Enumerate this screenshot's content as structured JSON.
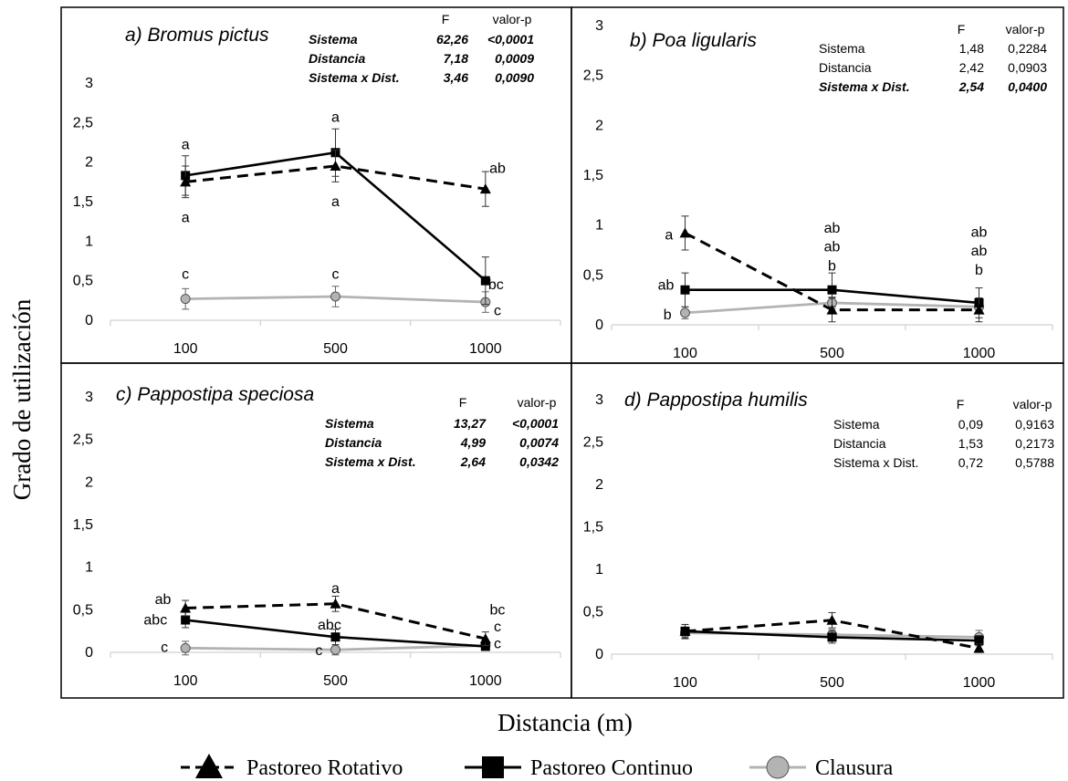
{
  "figure": {
    "ylabel": "Grado de utilización",
    "xlabel": "Distancia (m)",
    "legend": [
      {
        "name": "Pastoreo Rotativo",
        "style": "dashed",
        "marker": "triangle",
        "color": "#000000"
      },
      {
        "name": "Pastoreo Continuo",
        "style": "solid",
        "marker": "square",
        "color": "#000000"
      },
      {
        "name": "Clausura",
        "style": "solid",
        "marker": "circle",
        "color": "#b3b3b3"
      }
    ]
  },
  "chart_data": [
    {
      "type": "line",
      "title": "a) Bromus pictus",
      "categories": [
        "100",
        "500",
        "1000"
      ],
      "ylim": [
        0,
        3
      ],
      "yticks": [
        "0",
        "0,5",
        "1",
        "1,5",
        "2",
        "2,5",
        "3"
      ],
      "series": [
        {
          "name": "Pastoreo Rotativo",
          "values": [
            1.75,
            1.95,
            1.66
          ],
          "errors": [
            0.2,
            0.2,
            0.22
          ]
        },
        {
          "name": "Pastoreo Continuo",
          "values": [
            1.83,
            2.12,
            0.5
          ],
          "errors": [
            0.25,
            0.3,
            0.3
          ]
        },
        {
          "name": "Clausura",
          "values": [
            0.27,
            0.3,
            0.23
          ],
          "errors": [
            0.13,
            0.13,
            0.13
          ]
        }
      ],
      "stats": {
        "header": [
          "F",
          "valor-p"
        ],
        "bold": true,
        "rows": [
          {
            "label": "Sistema",
            "F": "62,26",
            "p": "<0,0001"
          },
          {
            "label": "Distancia",
            "F": "7,18",
            "p": "0,0009"
          },
          {
            "label": "Sistema x Dist.",
            "F": "3,46",
            "p": "0,0090"
          }
        ]
      },
      "annotations": [
        {
          "text": "a",
          "x": 0,
          "y": 2.22
        },
        {
          "text": "a",
          "x": 0,
          "y": 1.3
        },
        {
          "text": "a",
          "x": 1,
          "y": 2.57
        },
        {
          "text": "a",
          "x": 1,
          "y": 1.5
        },
        {
          "text": "ab",
          "x": 2.08,
          "y": 1.92
        },
        {
          "text": "bc",
          "x": 2.07,
          "y": 0.45
        },
        {
          "text": "c",
          "x": 2.08,
          "y": 0.12
        },
        {
          "text": "c",
          "x": 0,
          "y": 0.58
        },
        {
          "text": "c",
          "x": 1,
          "y": 0.58
        }
      ]
    },
    {
      "type": "line",
      "title": "b) Poa ligularis",
      "categories": [
        "100",
        "500",
        "1000"
      ],
      "ylim": [
        0,
        3
      ],
      "yticks": [
        "0",
        "0,5",
        "1",
        "1,5",
        "2",
        "2,5",
        "3"
      ],
      "series": [
        {
          "name": "Pastoreo Rotativo",
          "values": [
            0.92,
            0.15,
            0.15
          ],
          "errors": [
            0.17,
            0.12,
            0.12
          ]
        },
        {
          "name": "Pastoreo Continuo",
          "values": [
            0.35,
            0.35,
            0.22
          ],
          "errors": [
            0.17,
            0.17,
            0.15
          ]
        },
        {
          "name": "Clausura",
          "values": [
            0.12,
            0.22,
            0.18
          ],
          "errors": [
            0.06,
            0.06,
            0.06
          ]
        }
      ],
      "stats": {
        "header": [
          "F",
          "valor-p"
        ],
        "bold": false,
        "rows": [
          {
            "label": "Sistema",
            "F": "1,48",
            "p": "0,2284",
            "bold": false
          },
          {
            "label": "Distancia",
            "F": "2,42",
            "p": "0,0903",
            "bold": false
          },
          {
            "label": "Sistema x Dist.",
            "F": "2,54",
            "p": "0,0400",
            "bold": true
          }
        ]
      },
      "annotations": [
        {
          "text": "a",
          "x": -0.11,
          "y": 0.9
        },
        {
          "text": "ab",
          "x": -0.13,
          "y": 0.4
        },
        {
          "text": "b",
          "x": -0.12,
          "y": 0.1
        },
        {
          "text": "ab",
          "x": 1,
          "y": 0.97
        },
        {
          "text": "ab",
          "x": 1,
          "y": 0.78
        },
        {
          "text": "b",
          "x": 1,
          "y": 0.59
        },
        {
          "text": "ab",
          "x": 2,
          "y": 0.93
        },
        {
          "text": "ab",
          "x": 2,
          "y": 0.74
        },
        {
          "text": "b",
          "x": 2,
          "y": 0.55
        }
      ]
    },
    {
      "type": "line",
      "title": "c) Pappostipa speciosa",
      "categories": [
        "100",
        "500",
        "1000"
      ],
      "ylim": [
        0,
        3
      ],
      "yticks": [
        "0",
        "0,5",
        "1",
        "1,5",
        "2",
        "2,5",
        "3"
      ],
      "series": [
        {
          "name": "Pastoreo Rotativo",
          "values": [
            0.52,
            0.57,
            0.16
          ],
          "errors": [
            0.09,
            0.09,
            0.08
          ]
        },
        {
          "name": "Pastoreo Continuo",
          "values": [
            0.38,
            0.18,
            0.07
          ],
          "errors": [
            0.09,
            0.09,
            0.04
          ]
        },
        {
          "name": "Clausura",
          "values": [
            0.05,
            0.03,
            0.08
          ],
          "errors": [
            0.08,
            0.06,
            0.04
          ]
        }
      ],
      "stats": {
        "header": [
          "F",
          "valor-p"
        ],
        "bold": true,
        "rows": [
          {
            "label": "Sistema",
            "F": "13,27",
            "p": "<0,0001"
          },
          {
            "label": "Distancia",
            "F": "4,99",
            "p": "0,0074"
          },
          {
            "label": "Sistema x Dist.",
            "F": "2,64",
            "p": "0,0342"
          }
        ]
      },
      "annotations": [
        {
          "text": "ab",
          "x": -0.15,
          "y": 0.62
        },
        {
          "text": "abc",
          "x": -0.2,
          "y": 0.38
        },
        {
          "text": "c",
          "x": -0.14,
          "y": 0.06
        },
        {
          "text": "a",
          "x": 1,
          "y": 0.75
        },
        {
          "text": "abc",
          "x": 0.96,
          "y": 0.32
        },
        {
          "text": "c",
          "x": 0.89,
          "y": 0.02
        },
        {
          "text": "bc",
          "x": 2.08,
          "y": 0.5
        },
        {
          "text": "c",
          "x": 2.08,
          "y": 0.3
        },
        {
          "text": "c",
          "x": 2.08,
          "y": 0.1
        }
      ]
    },
    {
      "type": "line",
      "title": "d) Pappostipa humilis",
      "categories": [
        "100",
        "500",
        "1000"
      ],
      "ylim": [
        0,
        3
      ],
      "yticks": [
        "0",
        "0,5",
        "1",
        "1,5",
        "2",
        "2,5",
        "3"
      ],
      "series": [
        {
          "name": "Pastoreo Rotativo",
          "values": [
            0.27,
            0.4,
            0.07
          ],
          "errors": [
            0.08,
            0.09,
            0.05
          ]
        },
        {
          "name": "Pastoreo Continuo",
          "values": [
            0.27,
            0.2,
            0.16
          ],
          "errors": [
            0.08,
            0.07,
            0.06
          ]
        },
        {
          "name": "Clausura",
          "values": [
            0.25,
            0.23,
            0.2
          ],
          "errors": [
            0.07,
            0.06,
            0.08
          ]
        }
      ],
      "stats": {
        "header": [
          "F",
          "valor-p"
        ],
        "bold": false,
        "rows": [
          {
            "label": "Sistema",
            "F": "0,09",
            "p": "0,9163"
          },
          {
            "label": "Distancia",
            "F": "1,53",
            "p": "0,2173"
          },
          {
            "label": "Sistema x Dist.",
            "F": "0,72",
            "p": "0,5788"
          }
        ]
      },
      "annotations": []
    }
  ]
}
